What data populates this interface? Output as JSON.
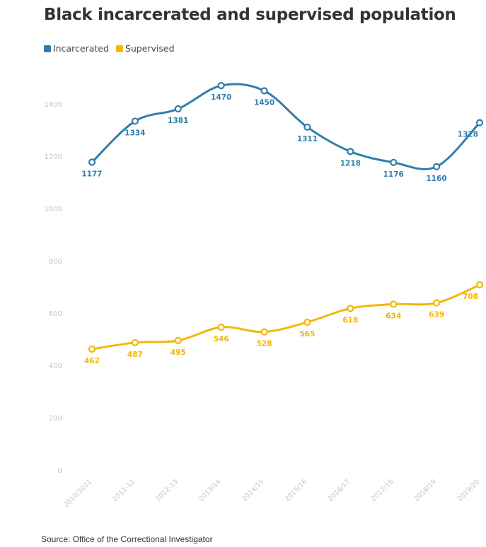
{
  "chart_data": {
    "type": "line",
    "title": "Black incarcerated and supervised population",
    "x": [
      "2010/2011",
      "2011-12",
      "2012-13",
      "2013/14",
      "2014/15",
      "2015/16",
      "2016/17",
      "2017/18",
      "2018/19",
      "2019/20"
    ],
    "series": [
      {
        "name": "Incarcerated",
        "color": "#2f7fab",
        "values": [
          1177,
          1334,
          1381,
          1470,
          1450,
          1311,
          1218,
          1176,
          1160,
          1328
        ]
      },
      {
        "name": "Supervised",
        "color": "#f2b705",
        "values": [
          462,
          487,
          495,
          546,
          528,
          565,
          618,
          634,
          639,
          708
        ]
      }
    ],
    "yticks": [
      0,
      200,
      400,
      600,
      800,
      1000,
      1200,
      1400
    ],
    "ylim": [
      0,
      1500
    ],
    "grid": false,
    "legend_position": "top-left",
    "source": "Source: Office of the Correctional Investigator"
  }
}
